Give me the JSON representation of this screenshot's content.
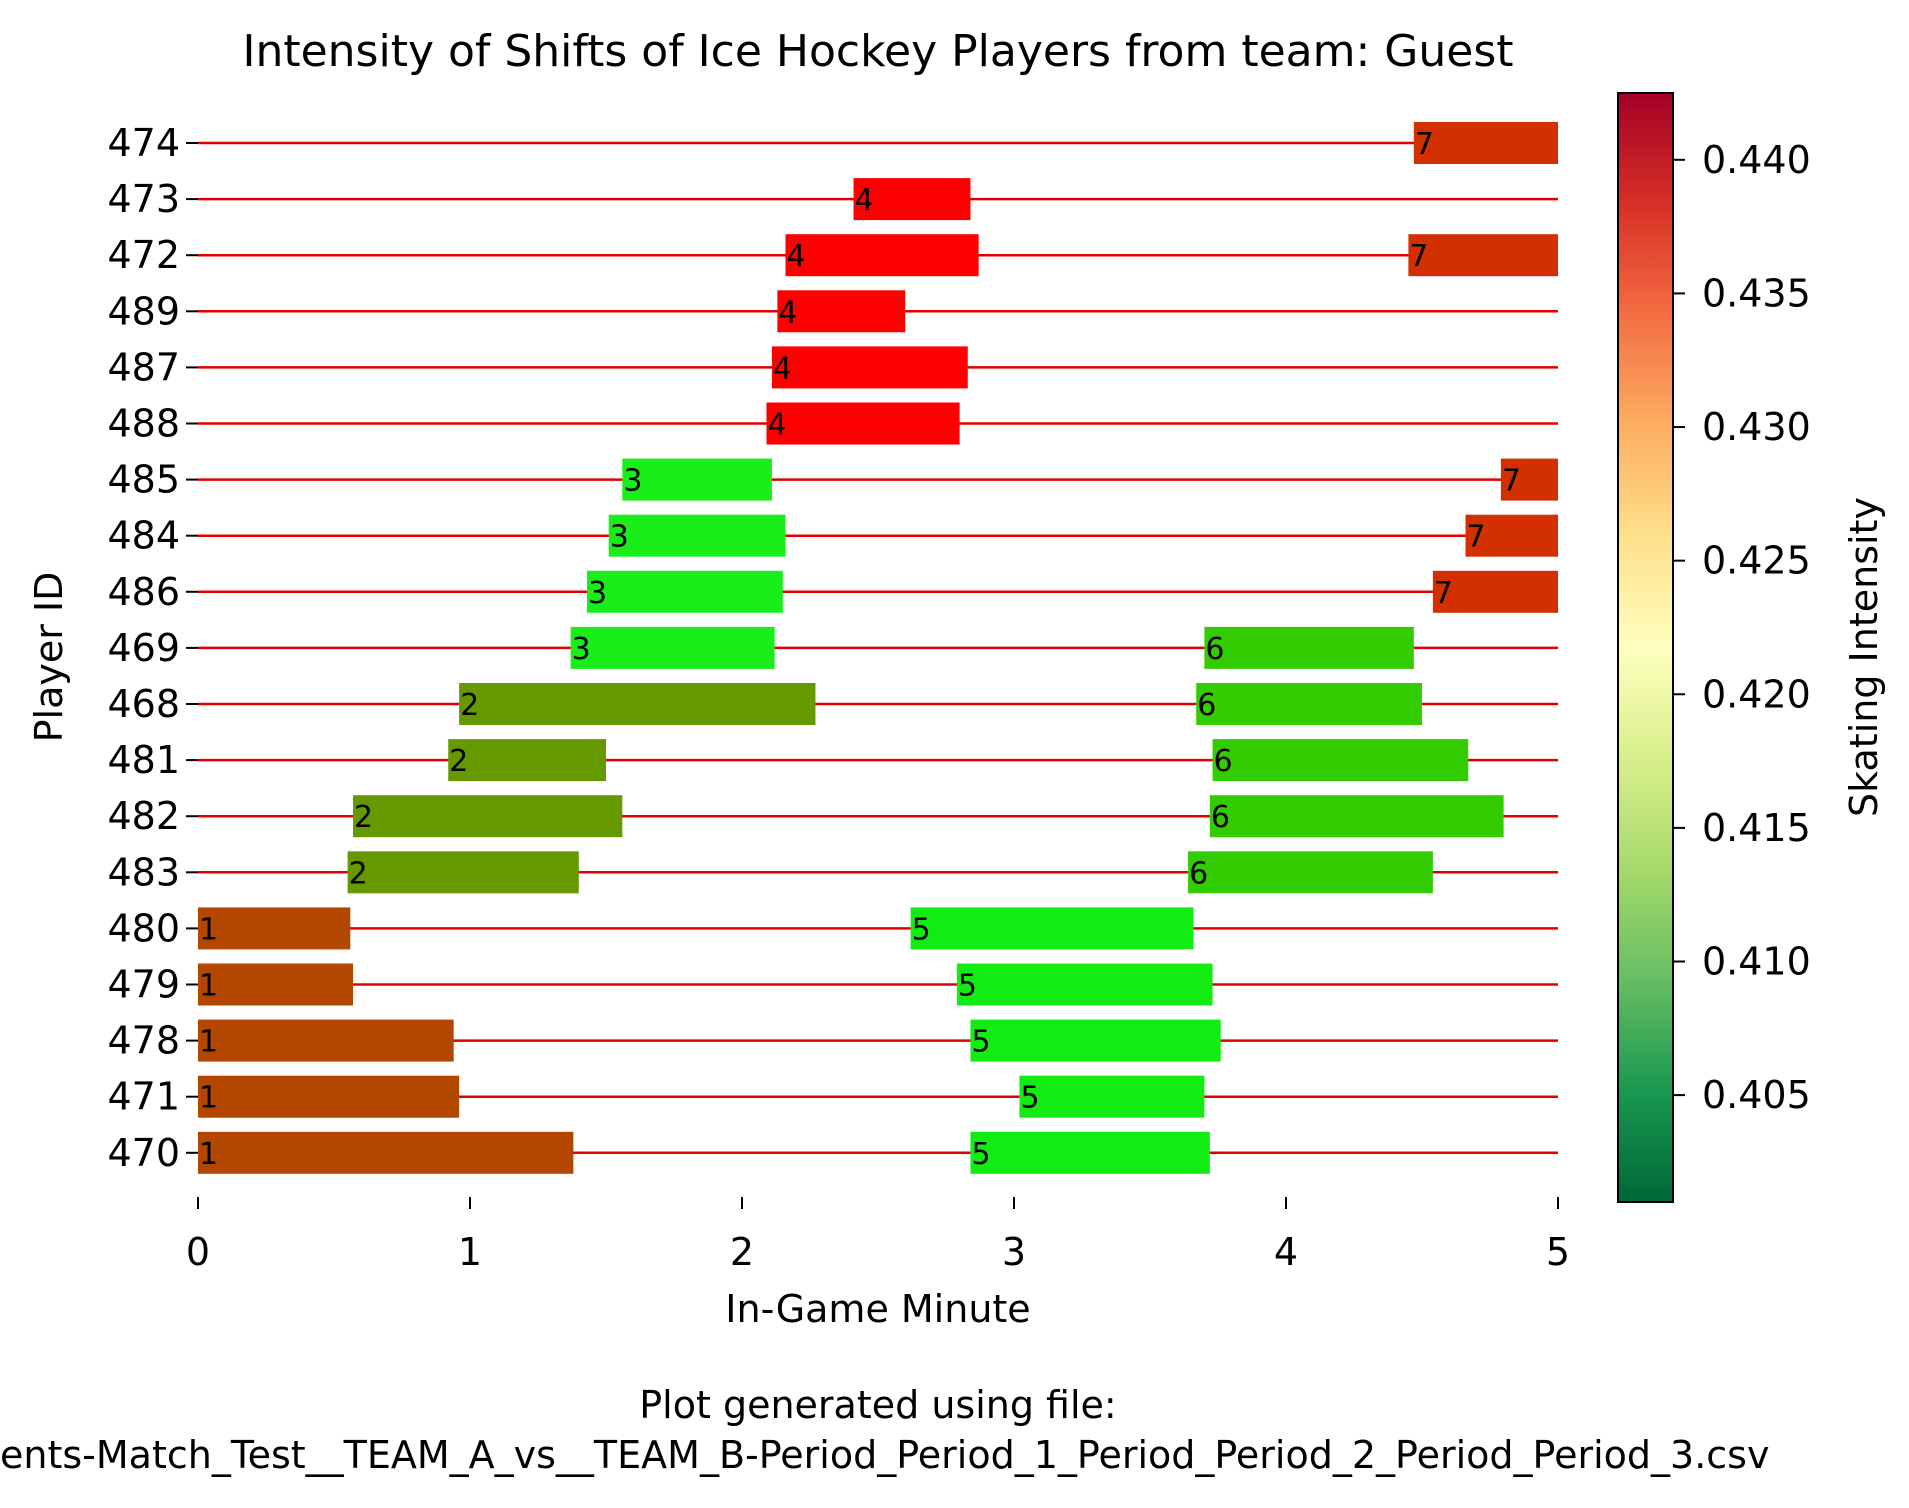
{
  "chart_data": {
    "type": "gantt",
    "title": "Intensity of Shifts of Ice Hockey Players from team: Guest",
    "xlabel": "In-Game Minute",
    "ylabel": "Player ID",
    "xlim": [
      0,
      5
    ],
    "xticks": [
      "0",
      "1",
      "2",
      "3",
      "4",
      "5"
    ],
    "players": [
      "474",
      "473",
      "472",
      "489",
      "487",
      "488",
      "485",
      "484",
      "486",
      "469",
      "468",
      "481",
      "482",
      "483",
      "480",
      "479",
      "478",
      "471",
      "470"
    ],
    "shifts": [
      {
        "player": "474",
        "start": 4.47,
        "end": 5.0,
        "label": "7",
        "intensity": 0.4385
      },
      {
        "player": "473",
        "start": 2.41,
        "end": 2.84,
        "label": "4",
        "intensity": 0.4425
      },
      {
        "player": "472",
        "start": 2.16,
        "end": 2.87,
        "label": "4",
        "intensity": 0.4425
      },
      {
        "player": "472",
        "start": 4.45,
        "end": 5.0,
        "label": "7",
        "intensity": 0.4385
      },
      {
        "player": "489",
        "start": 2.13,
        "end": 2.6,
        "label": "4",
        "intensity": 0.4425
      },
      {
        "player": "487",
        "start": 2.11,
        "end": 2.83,
        "label": "4",
        "intensity": 0.4425
      },
      {
        "player": "488",
        "start": 2.09,
        "end": 2.8,
        "label": "4",
        "intensity": 0.4425
      },
      {
        "player": "485",
        "start": 1.56,
        "end": 2.11,
        "label": "3",
        "intensity": 0.4015
      },
      {
        "player": "485",
        "start": 4.79,
        "end": 5.0,
        "label": "7",
        "intensity": 0.4385
      },
      {
        "player": "484",
        "start": 1.51,
        "end": 2.16,
        "label": "3",
        "intensity": 0.4015
      },
      {
        "player": "484",
        "start": 4.66,
        "end": 5.0,
        "label": "7",
        "intensity": 0.4385
      },
      {
        "player": "486",
        "start": 1.43,
        "end": 2.15,
        "label": "3",
        "intensity": 0.4015
      },
      {
        "player": "486",
        "start": 4.54,
        "end": 5.0,
        "label": "7",
        "intensity": 0.4385
      },
      {
        "player": "469",
        "start": 1.37,
        "end": 2.12,
        "label": "3",
        "intensity": 0.4015
      },
      {
        "player": "469",
        "start": 3.7,
        "end": 4.47,
        "label": "6",
        "intensity": 0.4025
      },
      {
        "player": "468",
        "start": 0.96,
        "end": 2.27,
        "label": "2",
        "intensity": 0.4118
      },
      {
        "player": "468",
        "start": 3.67,
        "end": 4.5,
        "label": "6",
        "intensity": 0.4025
      },
      {
        "player": "481",
        "start": 0.92,
        "end": 1.5,
        "label": "2",
        "intensity": 0.4118
      },
      {
        "player": "481",
        "start": 3.73,
        "end": 4.67,
        "label": "6",
        "intensity": 0.4025
      },
      {
        "player": "482",
        "start": 0.57,
        "end": 1.56,
        "label": "2",
        "intensity": 0.4118
      },
      {
        "player": "482",
        "start": 3.72,
        "end": 4.8,
        "label": "6",
        "intensity": 0.4025
      },
      {
        "player": "483",
        "start": 0.55,
        "end": 1.4,
        "label": "2",
        "intensity": 0.4118
      },
      {
        "player": "483",
        "start": 3.64,
        "end": 4.54,
        "label": "6",
        "intensity": 0.4025
      },
      {
        "player": "480",
        "start": 0.0,
        "end": 0.56,
        "label": "1",
        "intensity": 0.4335
      },
      {
        "player": "480",
        "start": 2.62,
        "end": 3.66,
        "label": "5",
        "intensity": 0.4018
      },
      {
        "player": "479",
        "start": 0.0,
        "end": 0.57,
        "label": "1",
        "intensity": 0.4335
      },
      {
        "player": "479",
        "start": 2.79,
        "end": 3.73,
        "label": "5",
        "intensity": 0.4018
      },
      {
        "player": "478",
        "start": 0.0,
        "end": 0.94,
        "label": "1",
        "intensity": 0.4335
      },
      {
        "player": "478",
        "start": 2.84,
        "end": 3.76,
        "label": "5",
        "intensity": 0.4018
      },
      {
        "player": "471",
        "start": 0.0,
        "end": 0.96,
        "label": "1",
        "intensity": 0.4335
      },
      {
        "player": "471",
        "start": 3.02,
        "end": 3.7,
        "label": "5",
        "intensity": 0.4018
      },
      {
        "player": "470",
        "start": 0.0,
        "end": 1.38,
        "label": "1",
        "intensity": 0.4335
      },
      {
        "player": "470",
        "start": 2.84,
        "end": 3.72,
        "label": "5",
        "intensity": 0.4018
      }
    ],
    "colorbar": {
      "label": "Skating Intensity",
      "range": [
        0.401,
        0.4425
      ],
      "ticks": [
        "0.405",
        "0.410",
        "0.415",
        "0.420",
        "0.425",
        "0.430",
        "0.435",
        "0.440"
      ],
      "colormap": "RdYlGn_r"
    },
    "guide_line_color": "#e00000"
  },
  "footer": {
    "line1": "Plot generated using file:",
    "line2": "ents-Match_Test__TEAM_A_vs__TEAM_B-Period_Period_1_Period_Period_2_Period_Period_3.csv"
  }
}
